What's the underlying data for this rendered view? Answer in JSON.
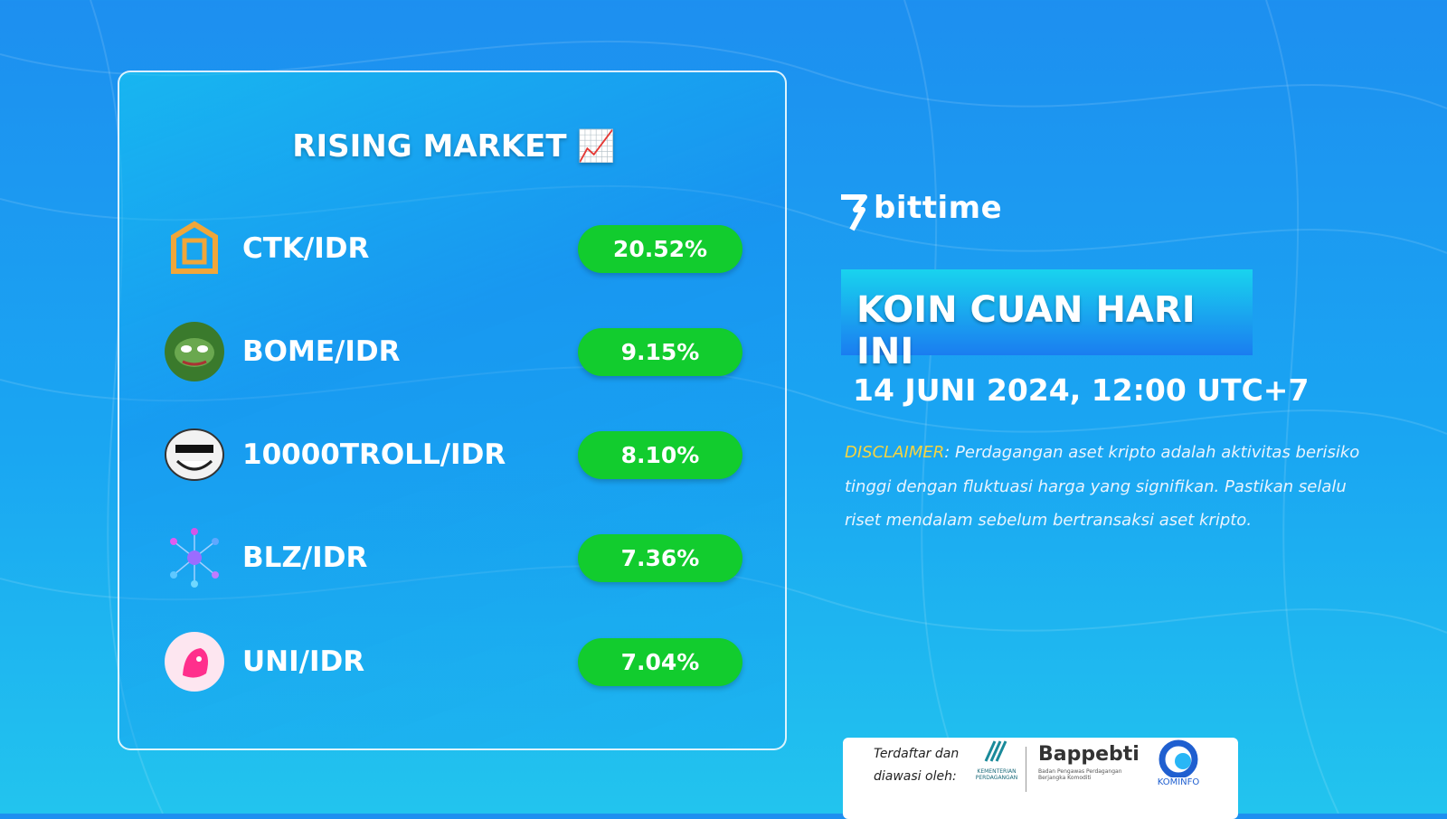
{
  "card": {
    "title": "RISING MARKET 📈",
    "rows": [
      {
        "pair": "CTK/IDR",
        "change": "20.52%"
      },
      {
        "pair": "BOME/IDR",
        "change": "9.15%"
      },
      {
        "pair": "10000TROLL/IDR",
        "change": "8.10%"
      },
      {
        "pair": "BLZ/IDR",
        "change": "7.36%"
      },
      {
        "pair": "UNI/IDR",
        "change": "7.04%"
      }
    ]
  },
  "brand": "bittime",
  "banner": "KOIN CUAN HARI INI",
  "date": "14 JUNI 2024, 12:00 UTC+7",
  "disclaimer": {
    "label": "DISCLAIMER",
    "text": ": Perdagangan aset kripto adalah aktivitas berisiko tinggi dengan fluktuasi harga yang signifikan. Pastikan selalu riset mendalam sebelum bertransaksi aset kripto."
  },
  "footer": {
    "registered": "Terdaftar dan diawasi oleh:",
    "ministry": "KEMENTERIAN PERDAGANGAN",
    "bappebti": "Bappebti",
    "bappebti_sub": "Badan Pengawas Perdagangan Berjangka Komoditi",
    "kominfo": "KOMINFO"
  }
}
